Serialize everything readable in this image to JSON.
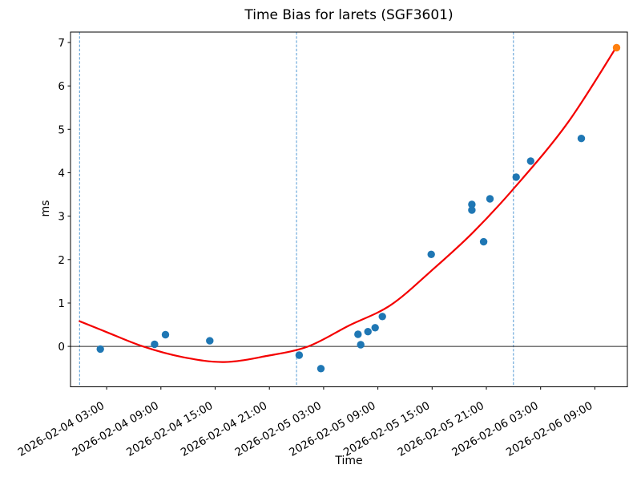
{
  "figure": {
    "title": "Time Bias for larets (SGF3601)",
    "xlabel": "Time",
    "ylabel": "ms"
  },
  "chart_data": {
    "type": "scatter",
    "title": "Time Bias for larets (SGF3601)",
    "xlabel": "Time",
    "ylabel": "ms",
    "x_encoding": "hours since 2026-02-04 00:00",
    "xlim": [
      -1,
      60.6
    ],
    "ylim": [
      -0.93,
      7.24
    ],
    "grid": false,
    "legend_position": "none",
    "x_ticks": [
      {
        "t": 3,
        "label": "2026-02-04 03:00"
      },
      {
        "t": 9,
        "label": "2026-02-04 09:00"
      },
      {
        "t": 15,
        "label": "2026-02-04 15:00"
      },
      {
        "t": 21,
        "label": "2026-02-04 21:00"
      },
      {
        "t": 27,
        "label": "2026-02-05 03:00"
      },
      {
        "t": 33,
        "label": "2026-02-05 09:00"
      },
      {
        "t": 39,
        "label": "2026-02-05 15:00"
      },
      {
        "t": 45,
        "label": "2026-02-05 21:00"
      },
      {
        "t": 51,
        "label": "2026-02-06 03:00"
      },
      {
        "t": 57,
        "label": "2026-02-06 09:00"
      }
    ],
    "y_ticks": [
      0,
      1,
      2,
      3,
      4,
      5,
      6,
      7
    ],
    "day_boundary_vlines_t": [
      0,
      24,
      48
    ],
    "zero_hline_y": 0,
    "series": [
      {
        "name": "time-bias-observations",
        "marker": "circle",
        "color": "#1f77b4",
        "points": [
          [
            2.3,
            -0.06
          ],
          [
            8.3,
            0.05
          ],
          [
            9.5,
            0.27
          ],
          [
            14.4,
            0.13
          ],
          [
            24.3,
            -0.2
          ],
          [
            26.7,
            -0.51
          ],
          [
            30.8,
            0.28
          ],
          [
            31.1,
            0.04
          ],
          [
            31.9,
            0.34
          ],
          [
            32.7,
            0.43
          ],
          [
            33.5,
            0.69
          ],
          [
            38.9,
            2.12
          ],
          [
            43.4,
            3.27
          ],
          [
            43.4,
            3.14
          ],
          [
            44.7,
            2.41
          ],
          [
            45.4,
            3.4
          ],
          [
            48.3,
            3.9
          ],
          [
            49.9,
            4.27
          ],
          [
            55.5,
            4.79
          ]
        ]
      },
      {
        "name": "latest-observation",
        "marker": "circle",
        "color": "#ff7f0e",
        "points": [
          [
            59.4,
            6.88
          ]
        ]
      }
    ],
    "fit_curve": {
      "name": "polynomial-fit",
      "color": "#f40000",
      "points": [
        [
          0,
          0.58
        ],
        [
          3,
          0.33
        ],
        [
          7,
          0.0
        ],
        [
          11.5,
          -0.25
        ],
        [
          16,
          -0.36
        ],
        [
          20.7,
          -0.22
        ],
        [
          25.3,
          0.0
        ],
        [
          29.8,
          0.48
        ],
        [
          34.4,
          0.95
        ],
        [
          38.9,
          1.74
        ],
        [
          43.5,
          2.62
        ],
        [
          48.3,
          3.7
        ],
        [
          54,
          5.15
        ],
        [
          59.4,
          6.9
        ]
      ]
    },
    "colors": {
      "observations": "#1f77b4",
      "latest_observation": "#ff7f0e",
      "fit_curve": "#f40000",
      "day_boundary_line": "#559bd4",
      "zero_line": "#262626",
      "axes_frame": "#000000",
      "text": "#000000",
      "background": "#ffffff"
    }
  }
}
